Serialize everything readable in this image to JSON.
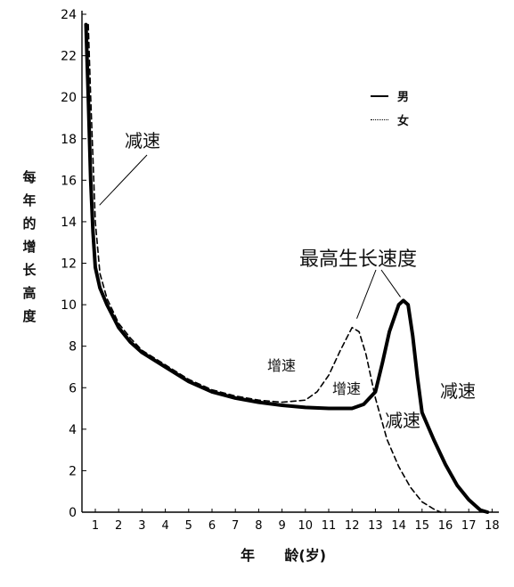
{
  "chart_data": {
    "type": "line",
    "ylabel_chars": [
      "每",
      "年",
      "的",
      "增",
      "长",
      "高",
      "度"
    ],
    "xlabel": "年      龄(岁)",
    "x_ticks": [
      1,
      2,
      3,
      4,
      5,
      6,
      7,
      8,
      9,
      10,
      11,
      12,
      13,
      14,
      15,
      16,
      17,
      18
    ],
    "y_ticks": [
      0,
      2,
      4,
      6,
      8,
      10,
      12,
      14,
      16,
      18,
      20,
      22,
      24
    ],
    "xlim": [
      0.4,
      18.6
    ],
    "ylim": [
      0,
      24
    ],
    "grid": false,
    "legend_position": "top-right",
    "series": [
      {
        "name": "男",
        "style": "solid",
        "color": "#000000",
        "points": [
          [
            0.6,
            23.5
          ],
          [
            0.7,
            20
          ],
          [
            0.8,
            16
          ],
          [
            0.9,
            13.5
          ],
          [
            1,
            11.8
          ],
          [
            1.2,
            10.8
          ],
          [
            1.5,
            10
          ],
          [
            2,
            8.9
          ],
          [
            2.5,
            8.2
          ],
          [
            3,
            7.7
          ],
          [
            4,
            7
          ],
          [
            5,
            6.3
          ],
          [
            6,
            5.8
          ],
          [
            7,
            5.5
          ],
          [
            8,
            5.3
          ],
          [
            9,
            5.15
          ],
          [
            10,
            5.05
          ],
          [
            11,
            5.0
          ],
          [
            12,
            5.0
          ],
          [
            12.5,
            5.2
          ],
          [
            13,
            5.8
          ],
          [
            13.3,
            7.2
          ],
          [
            13.6,
            8.7
          ],
          [
            14,
            10.0
          ],
          [
            14.2,
            10.2
          ],
          [
            14.4,
            10.0
          ],
          [
            14.6,
            8.5
          ],
          [
            14.8,
            6.5
          ],
          [
            15,
            4.8
          ],
          [
            15.5,
            3.5
          ],
          [
            16,
            2.3
          ],
          [
            16.5,
            1.3
          ],
          [
            17,
            0.6
          ],
          [
            17.5,
            0.1
          ],
          [
            17.8,
            0
          ]
        ]
      },
      {
        "name": "女",
        "style": "dashed",
        "color": "#000000",
        "points": [
          [
            0.7,
            23.5
          ],
          [
            0.8,
            20
          ],
          [
            0.9,
            17
          ],
          [
            1,
            14
          ],
          [
            1.2,
            11.5
          ],
          [
            1.5,
            10.3
          ],
          [
            2,
            9.1
          ],
          [
            2.5,
            8.4
          ],
          [
            3,
            7.8
          ],
          [
            4,
            7.1
          ],
          [
            5,
            6.4
          ],
          [
            6,
            5.9
          ],
          [
            7,
            5.6
          ],
          [
            8,
            5.4
          ],
          [
            9,
            5.3
          ],
          [
            10,
            5.4
          ],
          [
            10.5,
            5.8
          ],
          [
            11,
            6.6
          ],
          [
            11.5,
            7.8
          ],
          [
            12,
            8.9
          ],
          [
            12.3,
            8.7
          ],
          [
            12.6,
            7.6
          ],
          [
            13,
            5.5
          ],
          [
            13.5,
            3.5
          ],
          [
            14,
            2.2
          ],
          [
            14.5,
            1.2
          ],
          [
            15,
            0.5
          ],
          [
            15.5,
            0.15
          ],
          [
            15.8,
            0
          ]
        ]
      }
    ],
    "annotations": [
      {
        "text": "减速",
        "target": [
          0.95,
          14.8
        ]
      },
      {
        "text": "最高生长速度",
        "targets": [
          [
            12.05,
            8.9
          ],
          [
            14.15,
            10.2
          ]
        ]
      },
      {
        "text": "增速"
      },
      {
        "text": "增速"
      },
      {
        "text": "减速"
      },
      {
        "text": "减速"
      }
    ]
  }
}
